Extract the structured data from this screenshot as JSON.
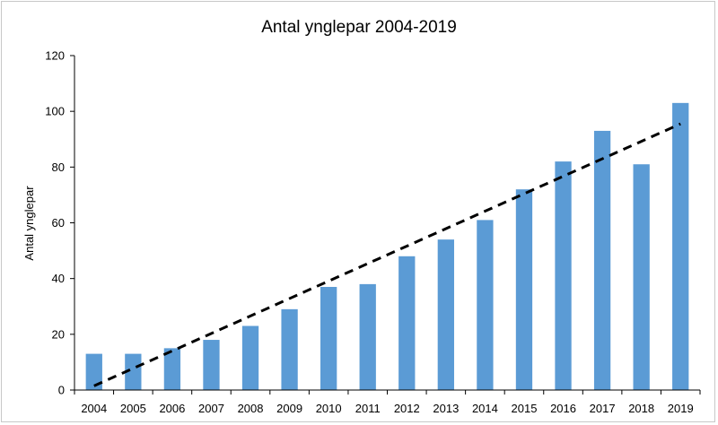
{
  "chart_data": {
    "type": "bar",
    "title": "Antal ynglepar 2004-2019",
    "xlabel": "",
    "ylabel": "Antal ynglepar",
    "categories": [
      "2004",
      "2005",
      "2006",
      "2007",
      "2008",
      "2009",
      "2010",
      "2011",
      "2012",
      "2013",
      "2014",
      "2015",
      "2016",
      "2017",
      "2018",
      "2019"
    ],
    "values": [
      13,
      13,
      15,
      18,
      23,
      29,
      37,
      38,
      48,
      54,
      61,
      72,
      82,
      93,
      81,
      103
    ],
    "ylim": [
      0,
      120
    ],
    "yticks": [
      0,
      20,
      40,
      60,
      80,
      100,
      120
    ],
    "grid": false,
    "bar_color": "#5b9bd5",
    "trendline": {
      "type": "linear",
      "style": "dashed",
      "color": "#000000",
      "start": 1.5,
      "end": 95.5
    }
  }
}
